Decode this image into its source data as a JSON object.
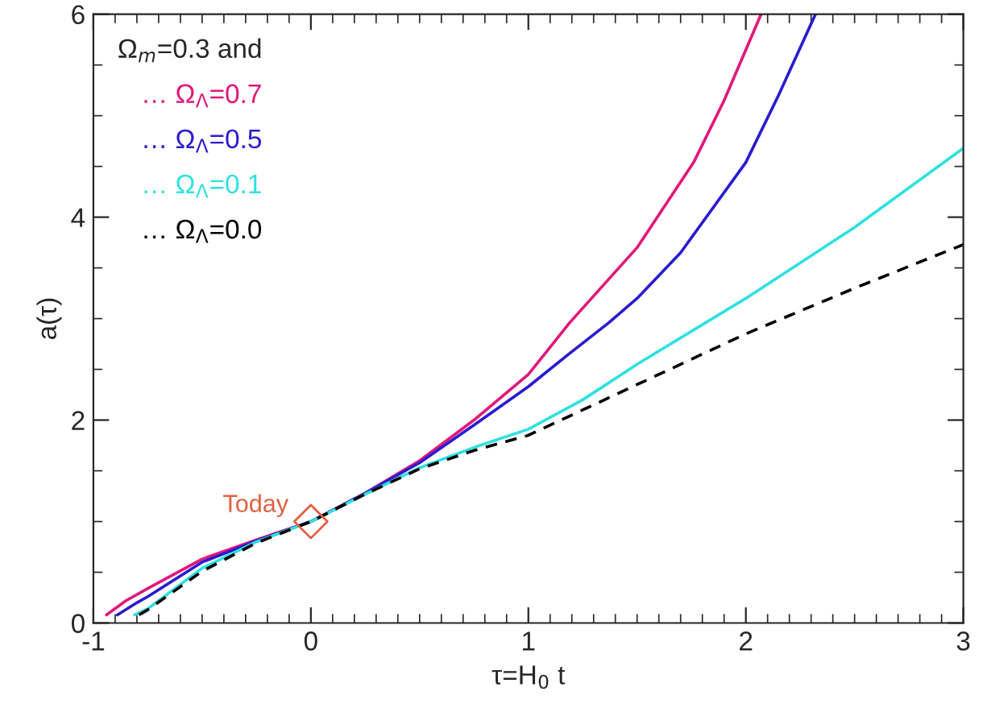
{
  "chart_data": {
    "type": "line",
    "xlabel": "τ=H$_{0}$ t",
    "ylabel": "a(τ)",
    "legend_title": "Ω$_{m}$=0.3 and",
    "legend": "top left",
    "xlim": [
      -1,
      3
    ],
    "ylim": [
      0,
      6
    ],
    "xticks": [
      -1,
      {
        "value": -0.9,
        "label": null
      },
      {
        "value": -0.8,
        "label": null
      },
      {
        "value": -0.7,
        "label": null
      },
      {
        "value": -0.6,
        "label": null
      },
      {
        "value": -0.5,
        "label": null
      },
      {
        "value": -0.4,
        "label": null
      },
      {
        "value": -0.3,
        "label": null
      },
      {
        "value": -0.2,
        "label": null
      },
      {
        "value": -0.1,
        "label": null
      },
      0,
      {
        "value": 0.1,
        "label": null
      },
      {
        "value": 0.2,
        "label": null
      },
      {
        "value": 0.3,
        "label": null
      },
      {
        "value": 0.4,
        "label": null
      },
      {
        "value": 0.5,
        "label": null
      },
      {
        "value": 0.6,
        "label": null
      },
      {
        "value": 0.7,
        "label": null
      },
      {
        "value": 0.8,
        "label": null
      },
      {
        "value": 0.9,
        "label": null
      },
      1,
      {
        "value": 1.1,
        "label": null
      },
      {
        "value": 1.2,
        "label": null
      },
      {
        "value": 1.3,
        "label": null
      },
      {
        "value": 1.4,
        "label": null
      },
      {
        "value": 1.5,
        "label": null
      },
      {
        "value": 1.6,
        "label": null
      },
      {
        "value": 1.7,
        "label": null
      },
      {
        "value": 1.8,
        "label": null
      },
      {
        "value": 1.9,
        "label": null
      },
      2,
      {
        "value": 2.1,
        "label": null
      },
      {
        "value": 2.2,
        "label": null
      },
      {
        "value": 2.3,
        "label": null
      },
      {
        "value": 2.4,
        "label": null
      },
      {
        "value": 2.5,
        "label": null
      },
      {
        "value": 2.6,
        "label": null
      },
      {
        "value": 2.7,
        "label": null
      },
      {
        "value": 2.8,
        "label": null
      },
      {
        "value": 2.9,
        "label": null
      },
      3
    ],
    "yticks": [
      0,
      {
        "value": 0.5,
        "label": null
      },
      {
        "value": 1,
        "label": null
      },
      {
        "value": 1.5,
        "label": null
      },
      2,
      {
        "value": 2.5,
        "label": null
      },
      {
        "value": 3,
        "label": null
      },
      {
        "value": 3.5,
        "label": null
      },
      4,
      {
        "value": 4.5,
        "label": null
      },
      {
        "value": 5,
        "label": null
      },
      {
        "value": 5.5,
        "label": null
      },
      6
    ],
    "grid": false,
    "annotations": [
      {
        "text": "Today",
        "x": 0,
        "y": 1
      }
    ],
    "series": [
      {
        "name": "… Ω$_{Λ}$=0.7",
        "color": "#e0187a",
        "line_style": "solid",
        "x": [
          -0.94,
          -0.85,
          -0.75,
          -0.5,
          -0.25,
          0,
          0.25,
          0.5,
          0.75,
          1,
          1.19,
          1.5,
          1.76,
          1.9,
          2.07
        ],
        "values": [
          0.08,
          0.22,
          0.34,
          0.63,
          0.82,
          1,
          1.28,
          1.6,
          2.0,
          2.45,
          2.96,
          3.7,
          4.54,
          5.15,
          6
        ]
      },
      {
        "name": "… Ω$_{Λ}$=0.5",
        "color": "#2a1bd0",
        "line_style": "solid",
        "x": [
          -0.89,
          -0.8,
          -0.75,
          -0.5,
          -0.25,
          0,
          0.25,
          0.5,
          0.75,
          1,
          1.18,
          1.37,
          1.5,
          1.7,
          2.0,
          2.15,
          2.32
        ],
        "values": [
          0.08,
          0.2,
          0.26,
          0.6,
          0.81,
          1,
          1.28,
          1.58,
          1.95,
          2.33,
          2.64,
          2.96,
          3.2,
          3.65,
          4.54,
          5.2,
          6
        ]
      },
      {
        "name": "… Ω$_{Λ}$=0.1",
        "color": "#30e0e0",
        "line_style": "solid",
        "x": [
          -0.81,
          -0.75,
          -0.5,
          -0.25,
          0,
          0.25,
          0.5,
          0.75,
          1,
          1.25,
          1.5,
          2,
          2.5,
          3
        ],
        "values": [
          0.08,
          0.14,
          0.54,
          0.8,
          1,
          1.27,
          1.53,
          1.73,
          1.91,
          2.2,
          2.55,
          3.2,
          3.9,
          4.68
        ]
      },
      {
        "name": "… Ω$_{Λ}$=0.0",
        "color": "#000000",
        "line_style": "dashed",
        "x": [
          -0.79,
          -0.75,
          -0.5,
          -0.25,
          0,
          0.25,
          0.5,
          0.75,
          1,
          1.5,
          2,
          2.5,
          3
        ],
        "values": [
          0.08,
          0.13,
          0.51,
          0.79,
          1,
          1.27,
          1.52,
          1.7,
          1.85,
          2.35,
          2.85,
          3.3,
          3.73
        ]
      },
      {
        "type": "scatter",
        "color": "#e06040",
        "marker": "diamond",
        "x": [
          0
        ],
        "values": [
          1
        ]
      }
    ]
  }
}
